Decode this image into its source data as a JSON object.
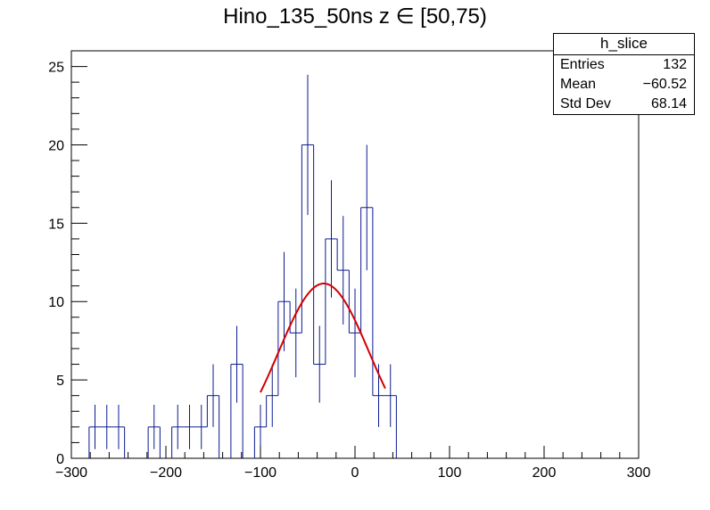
{
  "title": "Hino_135_50ns z  ∈ [50,75)",
  "stats": {
    "name": "h_slice",
    "rows": [
      {
        "label": "Entries",
        "value": "132"
      },
      {
        "label": "Mean",
        "value": "−60.52"
      },
      {
        "label": "Std Dev",
        "value": "68.14"
      }
    ]
  },
  "colors": {
    "histogram": "#0b1a8f",
    "fit": "#d40000",
    "frame": "#000000"
  },
  "chart_data": {
    "type": "histogram",
    "xlim": [
      -300,
      300
    ],
    "ylim": [
      0,
      26
    ],
    "bin_width": 12.5,
    "x_ticks": [
      "−300",
      "−200",
      "−100",
      "0",
      "100",
      "200",
      "300"
    ],
    "y_ticks": [
      "0",
      "5",
      "10",
      "15",
      "20",
      "25"
    ],
    "bins": [
      {
        "x": -275,
        "y": 2
      },
      {
        "x": -262.5,
        "y": 2
      },
      {
        "x": -250,
        "y": 2
      },
      {
        "x": -212.5,
        "y": 2
      },
      {
        "x": -187.5,
        "y": 2
      },
      {
        "x": -175,
        "y": 2
      },
      {
        "x": -162.5,
        "y": 2
      },
      {
        "x": -150,
        "y": 4
      },
      {
        "x": -125,
        "y": 6
      },
      {
        "x": -100,
        "y": 2
      },
      {
        "x": -87.5,
        "y": 4
      },
      {
        "x": -75,
        "y": 10
      },
      {
        "x": -62.5,
        "y": 8
      },
      {
        "x": -50,
        "y": 20
      },
      {
        "x": -37.5,
        "y": 6
      },
      {
        "x": -25,
        "y": 14
      },
      {
        "x": -12.5,
        "y": 12
      },
      {
        "x": 0,
        "y": 8
      },
      {
        "x": 12.5,
        "y": 16
      },
      {
        "x": 25,
        "y": 4
      },
      {
        "x": 37.5,
        "y": 4
      }
    ],
    "fit": {
      "type": "gaussian",
      "amplitude": 11.15,
      "mean": -33,
      "sigma": 48,
      "range": [
        -100,
        32
      ]
    }
  }
}
